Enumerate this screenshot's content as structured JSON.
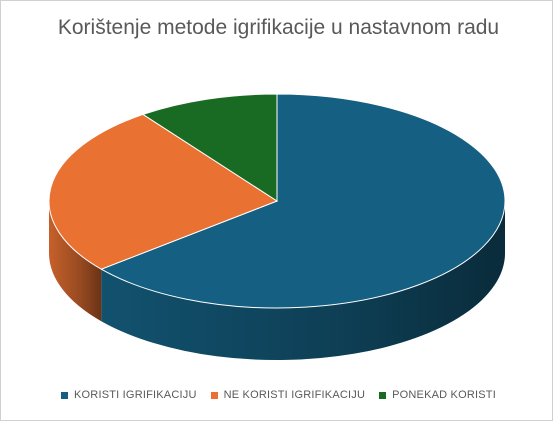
{
  "chart_data": {
    "type": "pie",
    "title": "Korištenje metode igrifikacije u nastavnom radu",
    "categories": [
      "KORISTI IGRIFIKACIJU",
      "NE KORISTI IGRIFIKACIJU",
      "PONEKAD KORISTI"
    ],
    "values": [
      64,
      26,
      10
    ],
    "colors": [
      "#156082",
      "#E97132",
      "#196B24"
    ],
    "legend": "bottom",
    "style": "3d"
  }
}
